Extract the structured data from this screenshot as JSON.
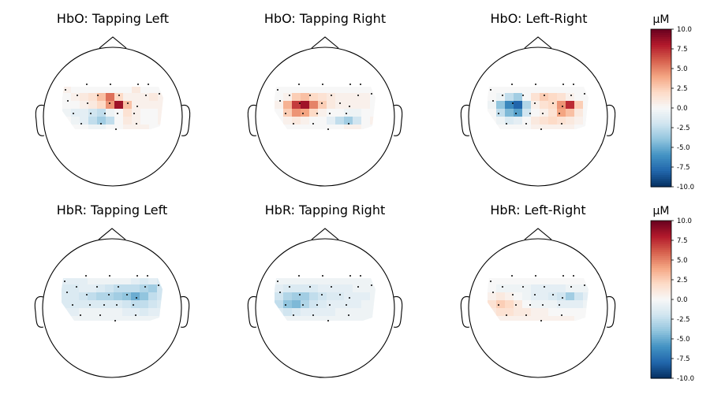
{
  "chart_data": [
    {
      "type": "heatmap",
      "title": "HbO: Tapping Left",
      "values": [
        0.5,
        0,
        0,
        0,
        0,
        0,
        0,
        0,
        1,
        0,
        0,
        0,
        0,
        0.5,
        1,
        1.5,
        3,
        5.5,
        2,
        0.5,
        0.5,
        0.5,
        1,
        0.5,
        0,
        0,
        0.5,
        1,
        2,
        4.5,
        8.5,
        3,
        0.5,
        0.5,
        0.5,
        0.5,
        -0.5,
        -1,
        -1,
        -2,
        -2.5,
        -0.5,
        0,
        1.5,
        0.5,
        0,
        0,
        0.5,
        0,
        -0.5,
        -1,
        -2.5,
        -3.5,
        -2.5,
        0,
        1,
        0.5,
        0,
        0,
        0.5,
        0.5,
        0,
        0,
        -0.5,
        -0.5,
        0,
        0,
        0.5,
        0.5,
        0.5,
        0,
        0
      ],
      "vmin": -10,
      "vmax": 10,
      "colormap": "RdBu_r"
    },
    {
      "type": "heatmap",
      "title": "HbO: Tapping Right",
      "values": [
        0,
        0,
        0,
        0,
        0,
        0,
        0,
        0,
        0,
        0,
        0,
        0,
        0,
        0.5,
        2.5,
        3,
        2,
        1.5,
        1,
        0.5,
        0.5,
        0.5,
        0.5,
        0,
        0.5,
        3.5,
        7,
        8.5,
        5,
        2.5,
        1,
        0.5,
        0.5,
        0.5,
        0.5,
        0,
        0,
        2.5,
        4.5,
        4,
        2,
        0.5,
        0,
        0,
        -0.5,
        -0.5,
        0,
        0,
        0,
        0.5,
        1,
        0.5,
        0,
        0,
        -1,
        -2.5,
        -3.5,
        -2,
        0,
        0.5,
        0,
        0,
        0,
        0,
        0,
        0,
        0,
        0,
        0.5,
        0.5,
        0,
        0
      ],
      "vmin": -10,
      "vmax": 10,
      "colormap": "RdBu_r"
    },
    {
      "type": "heatmap",
      "title": "HbO: Left-Right",
      "values": [
        0,
        0,
        0,
        0,
        0,
        0,
        0,
        0,
        0,
        0,
        0,
        0,
        0,
        -0.5,
        -2.5,
        -3.5,
        0,
        1.5,
        2.5,
        2,
        1.5,
        0.5,
        0,
        0,
        -0.5,
        -4,
        -6.5,
        -8,
        -3,
        0.5,
        1.5,
        2,
        4.5,
        7.5,
        2.5,
        0,
        0,
        -2.5,
        -4.5,
        -5.5,
        -2,
        0,
        0.5,
        1.5,
        4,
        3,
        1,
        0,
        0,
        -0.5,
        -1.5,
        -1,
        0,
        1,
        1.5,
        2,
        1.5,
        1,
        0.5,
        0,
        0,
        0,
        0,
        0,
        0,
        0.5,
        0.5,
        0.5,
        0.5,
        0.5,
        0,
        0
      ],
      "vmin": -10,
      "vmax": 10,
      "colormap": "RdBu_r"
    },
    {
      "type": "heatmap",
      "title": "HbR: Tapping Left",
      "values": [
        -1,
        -1,
        -1,
        -0.5,
        -0.5,
        -0.5,
        -0.5,
        -0.5,
        -1,
        -1.5,
        -1,
        -1.5,
        -1.5,
        -1.5,
        -1,
        -1,
        -1.5,
        -2,
        -2.5,
        -2.5,
        -2.5,
        -3,
        -3.5,
        -2,
        -1.5,
        -1.5,
        -2,
        -2.5,
        -3,
        -3,
        -3.5,
        -4,
        -5,
        -4,
        -2.5,
        -2,
        -1.5,
        -1.5,
        -1.5,
        -1.5,
        -1.5,
        -1.5,
        -1.5,
        -2,
        -2.5,
        -2.5,
        -2,
        -1.5,
        -1,
        -1,
        -0.5,
        -0.5,
        -0.5,
        -0.5,
        -0.5,
        -1,
        -1,
        -1.5,
        -1,
        -1,
        -0.5,
        -0.5,
        -0.5,
        -0.5,
        -0.5,
        -0.5,
        -0.5,
        -0.5,
        -0.5,
        -0.5,
        -0.5,
        -0.5
      ],
      "vmin": -10,
      "vmax": 10,
      "colormap": "RdBu_r"
    },
    {
      "type": "heatmap",
      "title": "HbR: Tapping Right",
      "values": [
        -0.5,
        -0.5,
        -0.5,
        -0.5,
        -0.5,
        -0.5,
        -0.5,
        -0.5,
        -0.5,
        -0.5,
        -0.5,
        -0.5,
        -1,
        -1.5,
        -1.5,
        -1.5,
        -1.5,
        -1,
        -1,
        -1,
        -1,
        -0.5,
        -0.5,
        -0.5,
        -2,
        -3,
        -3.5,
        -3.5,
        -2.5,
        -2,
        -1.5,
        -1.5,
        -1,
        -1,
        -1,
        -0.5,
        -2.5,
        -4,
        -4.5,
        -3,
        -2,
        -1.5,
        -1,
        -1,
        -1,
        -1,
        -0.5,
        -0.5,
        -1.5,
        -2,
        -1.5,
        -1,
        -1,
        -1,
        -1,
        -0.5,
        -0.5,
        -0.5,
        -0.5,
        -0.5,
        -0.5,
        -0.5,
        -0.5,
        -0.5,
        -0.5,
        -0.5,
        -0.5,
        -0.5,
        -0.5,
        -0.5,
        -0.5,
        -0.5
      ],
      "vmin": -10,
      "vmax": 10,
      "colormap": "RdBu_r"
    },
    {
      "type": "heatmap",
      "title": "HbR: Left-Right",
      "values": [
        0,
        0,
        0,
        0,
        0,
        0,
        0,
        0,
        0,
        0,
        0,
        0,
        0,
        -0.5,
        -0.5,
        -0.5,
        -0.5,
        -1,
        -1,
        -1,
        -1,
        -0.5,
        -0.5,
        -0.5,
        0.5,
        1,
        0.5,
        0,
        -0.5,
        -1,
        -1,
        -1.5,
        -2,
        -3.5,
        -2,
        -1,
        1.5,
        2.5,
        2,
        1,
        0,
        -0.5,
        -0.5,
        -0.5,
        -1,
        -1,
        -1,
        -0.5,
        1,
        1.5,
        1.5,
        1,
        1,
        0.5,
        0.5,
        0,
        0,
        0,
        0,
        0,
        0.5,
        0.5,
        0.5,
        0.5,
        0.5,
        0.5,
        0.5,
        0.5,
        0.5,
        0.5,
        0,
        0
      ],
      "vmin": -10,
      "vmax": 10,
      "colormap": "RdBu_r"
    }
  ],
  "colorbars": [
    {
      "label": "µM",
      "ticks": [
        "10.0",
        "7.5",
        "5.0",
        "2.5",
        "0.0",
        "-2.5",
        "-5.0",
        "-7.5",
        "-10.0"
      ],
      "tick_values": [
        10,
        7.5,
        5,
        2.5,
        0,
        -2.5,
        -5,
        -7.5,
        -10
      ],
      "range": [
        -10,
        10
      ]
    },
    {
      "label": "µM",
      "ticks": [
        "10.0",
        "7.5",
        "5.0",
        "2.5",
        "0.0",
        "-2.5",
        "-5.0",
        "-7.5",
        "-10.0"
      ],
      "tick_values": [
        10,
        7.5,
        5,
        2.5,
        0,
        -2.5,
        -5,
        -7.5,
        -10
      ],
      "range": [
        -10,
        10
      ]
    }
  ]
}
